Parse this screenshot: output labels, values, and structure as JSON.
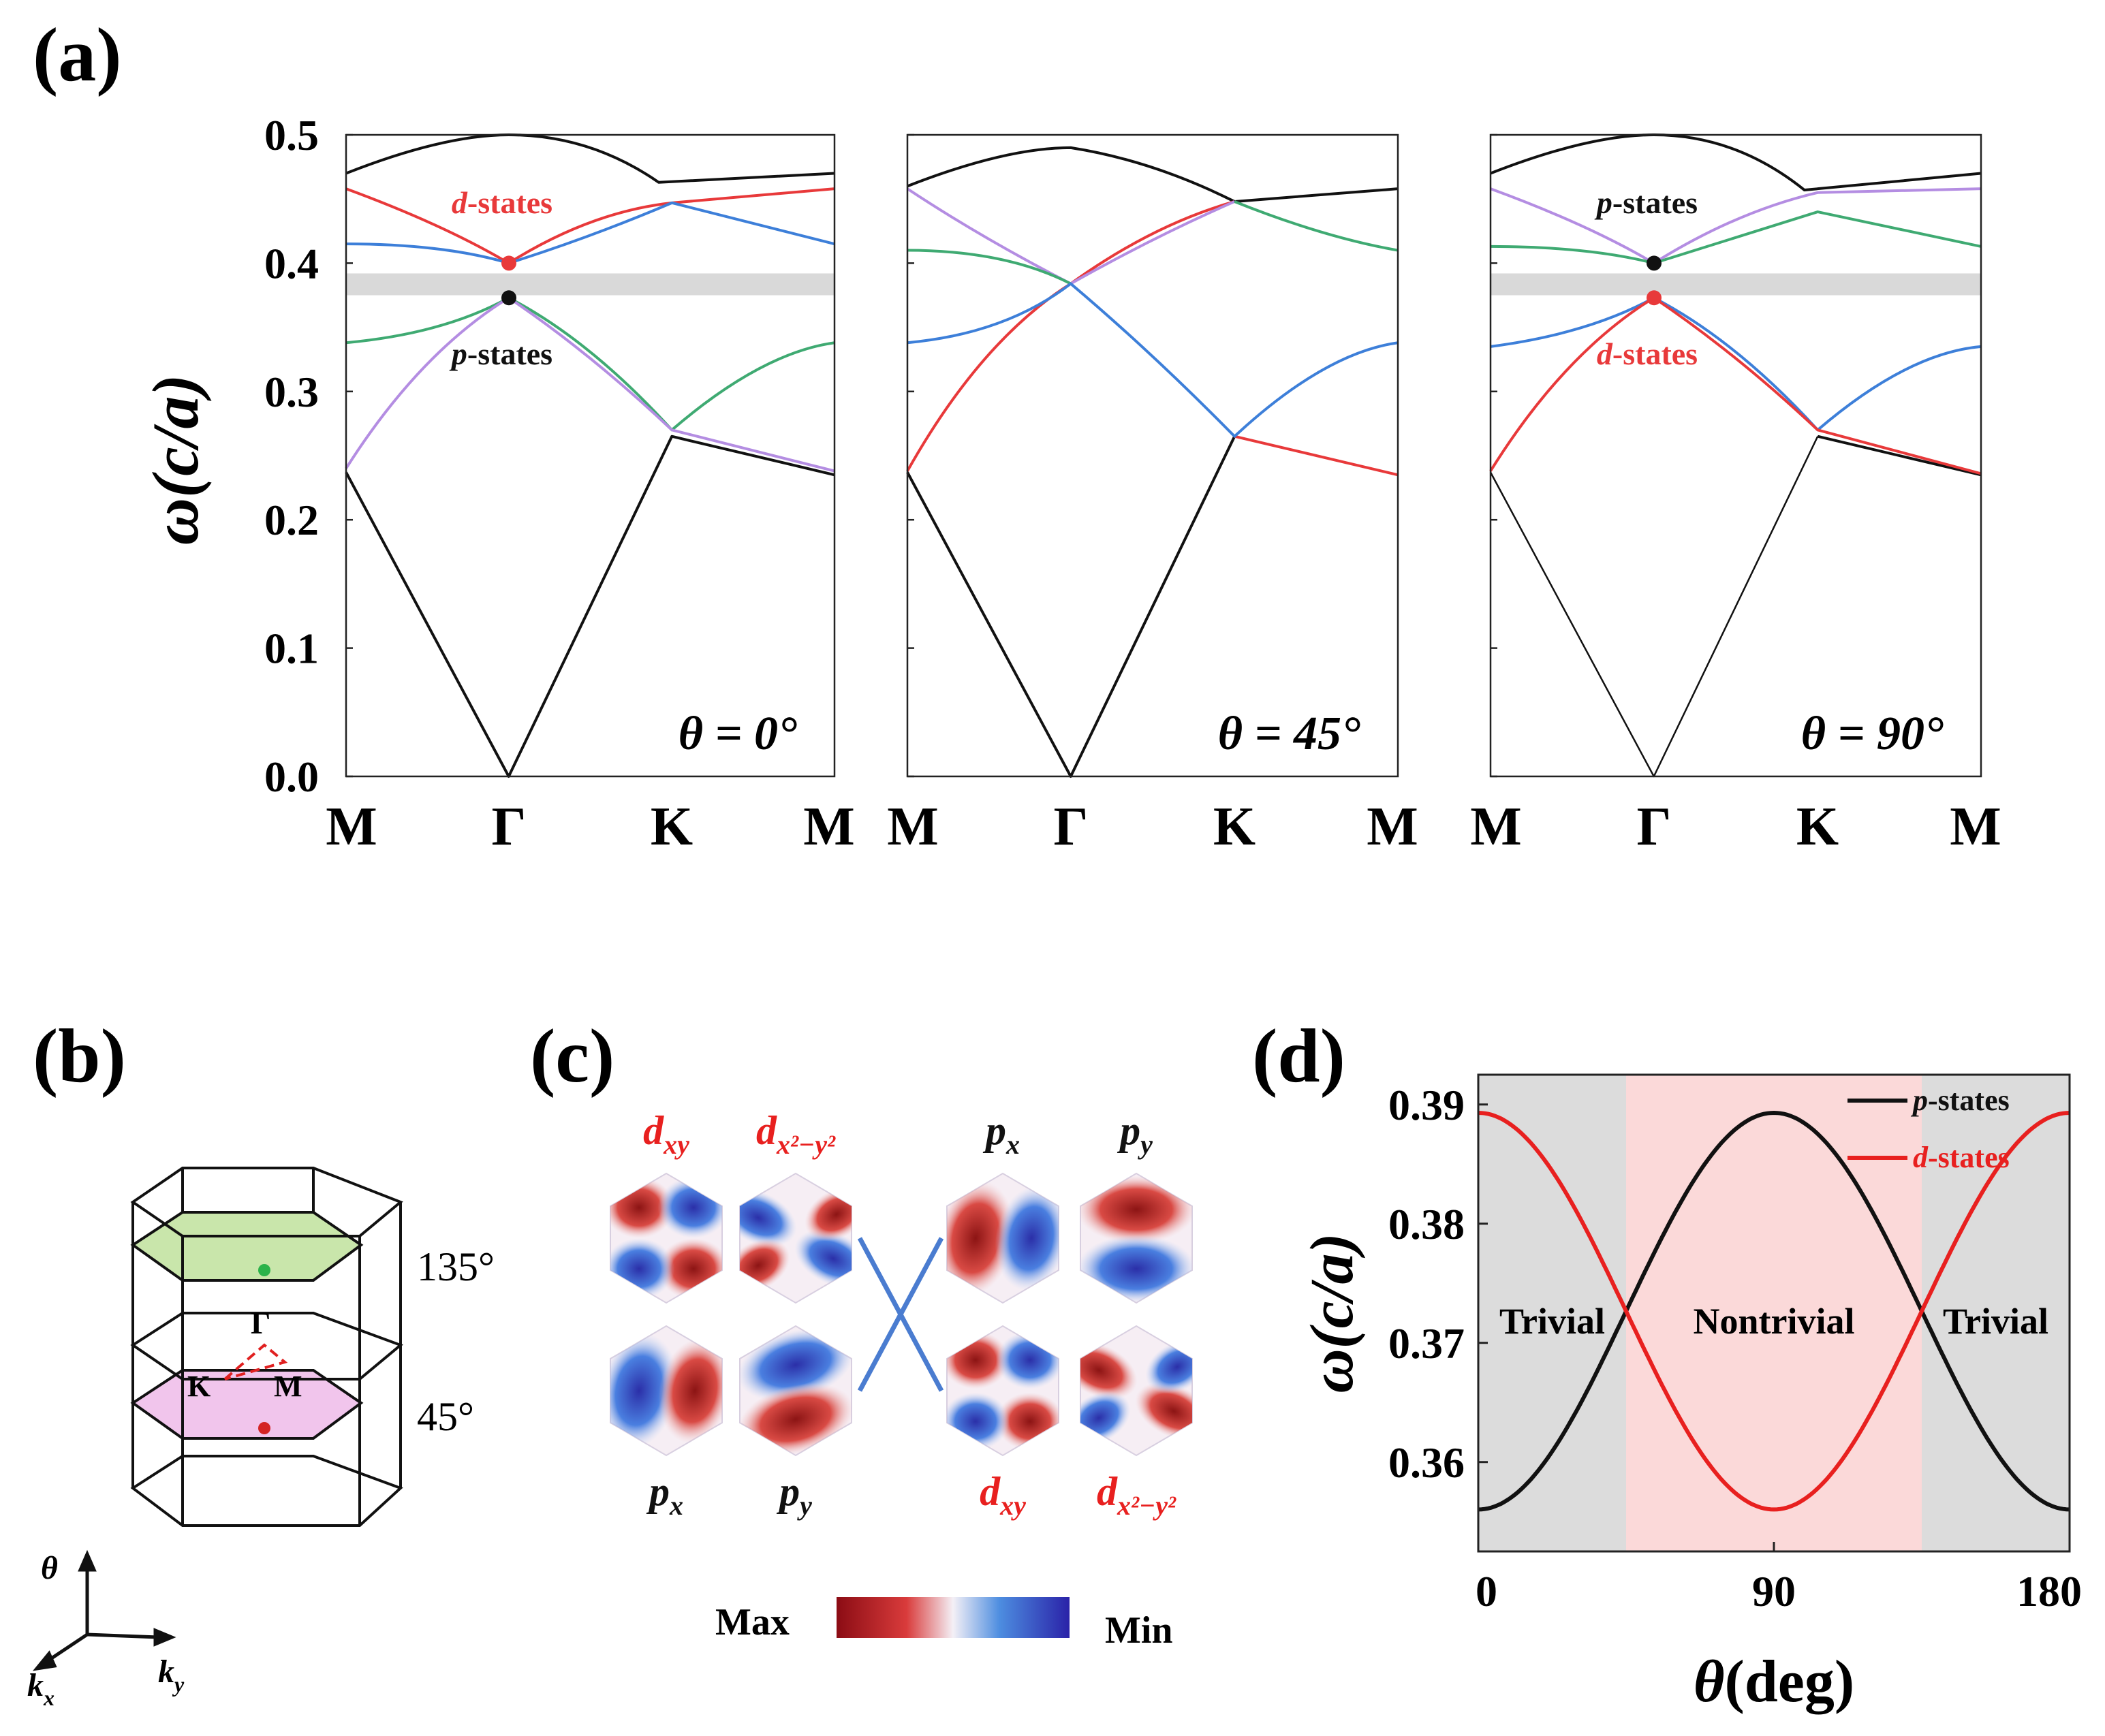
{
  "panel_labels": {
    "a": "(a)",
    "b": "(b)",
    "c": "(c)",
    "d": "(d)"
  },
  "panel_a": {
    "y_axis_label": "ω(c/a)",
    "y_ticks": [
      "0.5",
      "0.4",
      "0.3",
      "0.2",
      "0.1",
      "0.0"
    ],
    "x_ticks": [
      "M",
      "Γ",
      "K",
      "M"
    ],
    "subplots": [
      {
        "theta_label": "θ = 0°",
        "upper_state": "d-states",
        "lower_state": "p-states"
      },
      {
        "theta_label": "θ = 45°"
      },
      {
        "theta_label": "θ = 90°",
        "upper_state": "p-states",
        "lower_state": "d-states"
      }
    ],
    "colors": {
      "black": "#111111",
      "red": "#e8393a",
      "blue": "#3d7fd9",
      "green": "#3faa72",
      "purple": "#b48de2",
      "gap": "#d9d9d9"
    }
  },
  "panel_b": {
    "angle_upper": "135°",
    "angle_lower": "45°",
    "point_gamma": "Γ",
    "point_k": "K",
    "point_m": "M",
    "axis_theta": "θ",
    "axis_kx": "k",
    "axis_kx_sub": "x",
    "axis_ky": "k",
    "axis_ky_sub": "y"
  },
  "panel_c": {
    "labels_top": [
      "d",
      "d",
      "p",
      "p"
    ],
    "labels_top_sub": [
      "xy",
      "x²−y²",
      "x",
      "y"
    ],
    "labels_bottom": [
      "p",
      "p",
      "d",
      "d"
    ],
    "labels_bottom_sub": [
      "x",
      "y",
      "xy",
      "x²−y²"
    ],
    "colorbar_max": "Max",
    "colorbar_min": "Min"
  },
  "chart_data": {
    "type": "line",
    "xlabel": "θ(deg)",
    "ylabel": "ω(c/a)",
    "xlim": [
      0,
      180
    ],
    "ylim": [
      0.3525,
      0.3925
    ],
    "x_ticks": [
      "0",
      "90",
      "180"
    ],
    "y_ticks": [
      "0.39",
      "0.38",
      "0.37",
      "0.36"
    ],
    "series": [
      {
        "name": "p-states",
        "color": "#111111",
        "formula": "0.37266 - 0.01664*cos(2θ)"
      },
      {
        "name": "d-states",
        "color": "#e8201f",
        "formula": "0.37266 + 0.01664*cos(2θ)"
      }
    ],
    "regions": [
      {
        "label": "Trivial",
        "from": 0,
        "to": 45,
        "color": "#dcdcdc"
      },
      {
        "label": "Nontrivial",
        "from": 45,
        "to": 135,
        "color": "#fbd9d9"
      },
      {
        "label": "Trivial",
        "from": 135,
        "to": 180,
        "color": "#dcdcdc"
      }
    ],
    "legend_position": "top-right",
    "legend_entries": [
      "p-states",
      "d-states"
    ]
  }
}
